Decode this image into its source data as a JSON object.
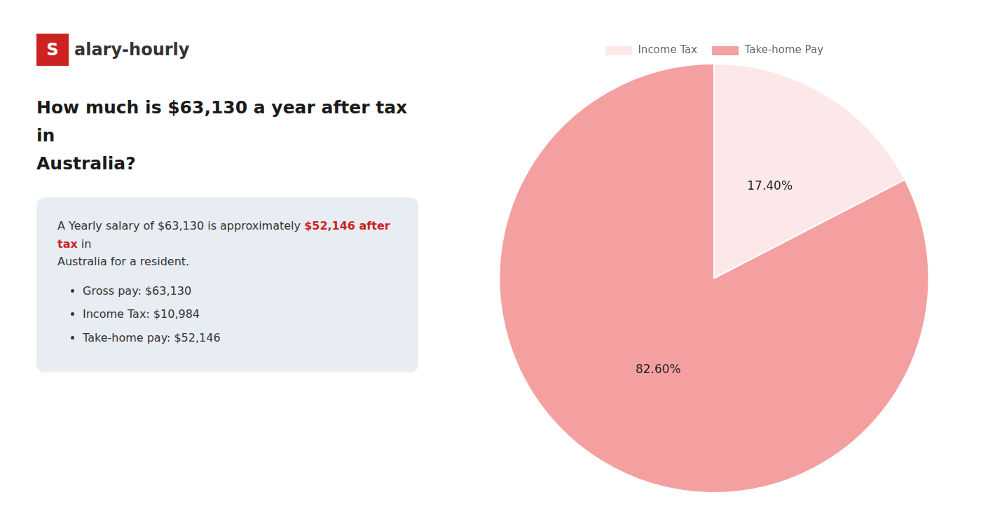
{
  "chart_data": {
    "type": "pie",
    "title": [
      "How much is $63,130 a year after tax in",
      "Australia?"
    ],
    "categories": [
      "Income Tax",
      "Take-home Pay"
    ],
    "values": [
      17.4,
      82.6
    ],
    "value_labels": [
      "17.40%",
      "82.60%"
    ],
    "colors": [
      "#fce8e8",
      "#f4a0a0"
    ],
    "data_labels": true,
    "legend": "top",
    "annotations": [
      {
        "text": "S",
        "color": "#cc2222"
      },
      {
        "text": "alary-hourly"
      },
      {
        "text": "A Yearly salary of $63,130 is approximately "
      },
      {
        "text": "$52,146 after tax",
        "color": "#cc2222"
      },
      {
        "text": " in"
      },
      {
        "text": "Australia for a resident."
      },
      {
        "text": "Gross pay: $63,130"
      },
      {
        "text": "Income Tax: $10,984"
      },
      {
        "text": "Take-home pay: $52,146"
      }
    ]
  }
}
